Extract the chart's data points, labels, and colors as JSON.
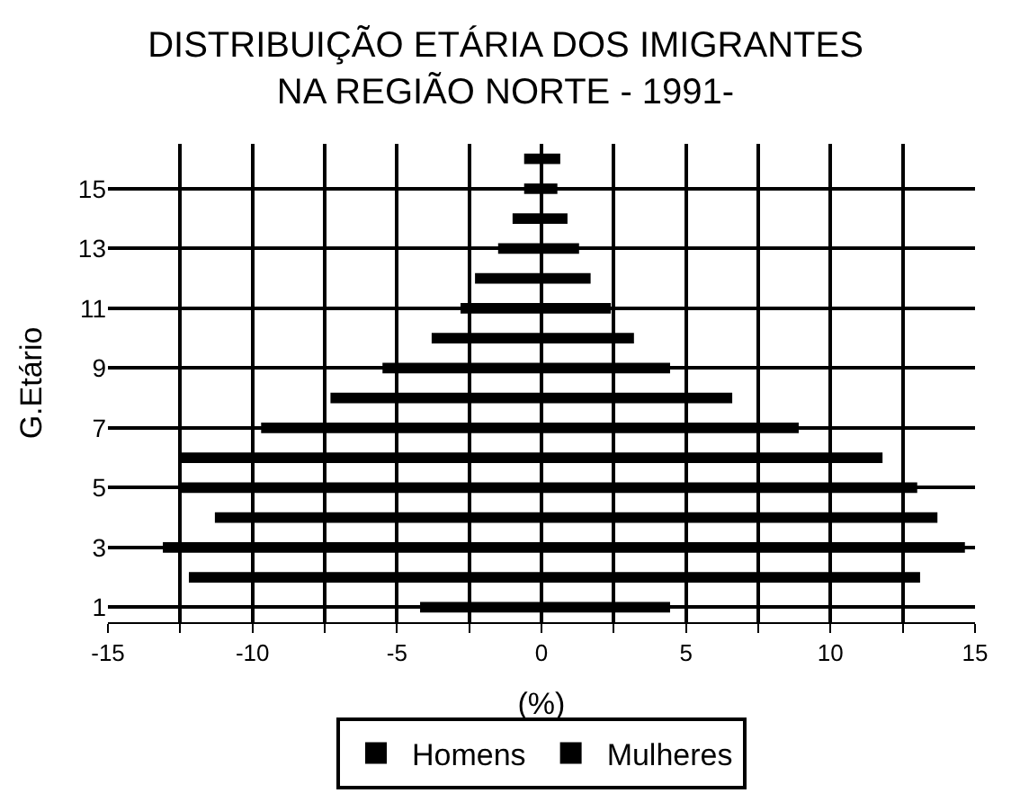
{
  "chart_data": {
    "type": "bar",
    "orientation": "horizontal",
    "stacked": true,
    "title": "DISTRIBUIÇÃO ETÁRIA DOS IMIGRANTES\nNA REGIÃO NORTE - 1991-",
    "xlabel": "(%)",
    "ylabel": "G.Etário",
    "categories": [
      null,
      "15",
      null,
      "13",
      null,
      "11",
      null,
      "9",
      null,
      "7",
      null,
      "5",
      null,
      "3",
      null,
      "1"
    ],
    "series": [
      {
        "name": "Homens",
        "color": "#000000",
        "values": [
          -0.6,
          -0.6,
          -1.0,
          -1.5,
          -2.3,
          -2.8,
          -3.8,
          -5.5,
          -7.3,
          -9.7,
          -12.5,
          -12.5,
          -11.3,
          -13.1,
          -12.2,
          -4.2
        ]
      },
      {
        "name": "Mulheres",
        "color": "#000000",
        "values": [
          0.65,
          0.55,
          0.9,
          1.3,
          1.7,
          2.4,
          3.2,
          4.45,
          6.6,
          8.9,
          11.8,
          13.0,
          13.7,
          14.65,
          13.1,
          4.45
        ]
      }
    ],
    "xlim": [
      -15,
      15
    ],
    "xticks": [
      -15,
      {
        "value": -12.5,
        "label": null
      },
      -10,
      {
        "value": -7.5,
        "label": null
      },
      -5,
      {
        "value": -2.5,
        "label": null
      },
      0,
      {
        "value": 2.5,
        "label": null
      },
      5,
      {
        "value": 7.5,
        "label": null
      },
      10,
      {
        "value": 12.5,
        "label": null
      },
      15
    ],
    "grid": true,
    "legend": "bottom"
  }
}
